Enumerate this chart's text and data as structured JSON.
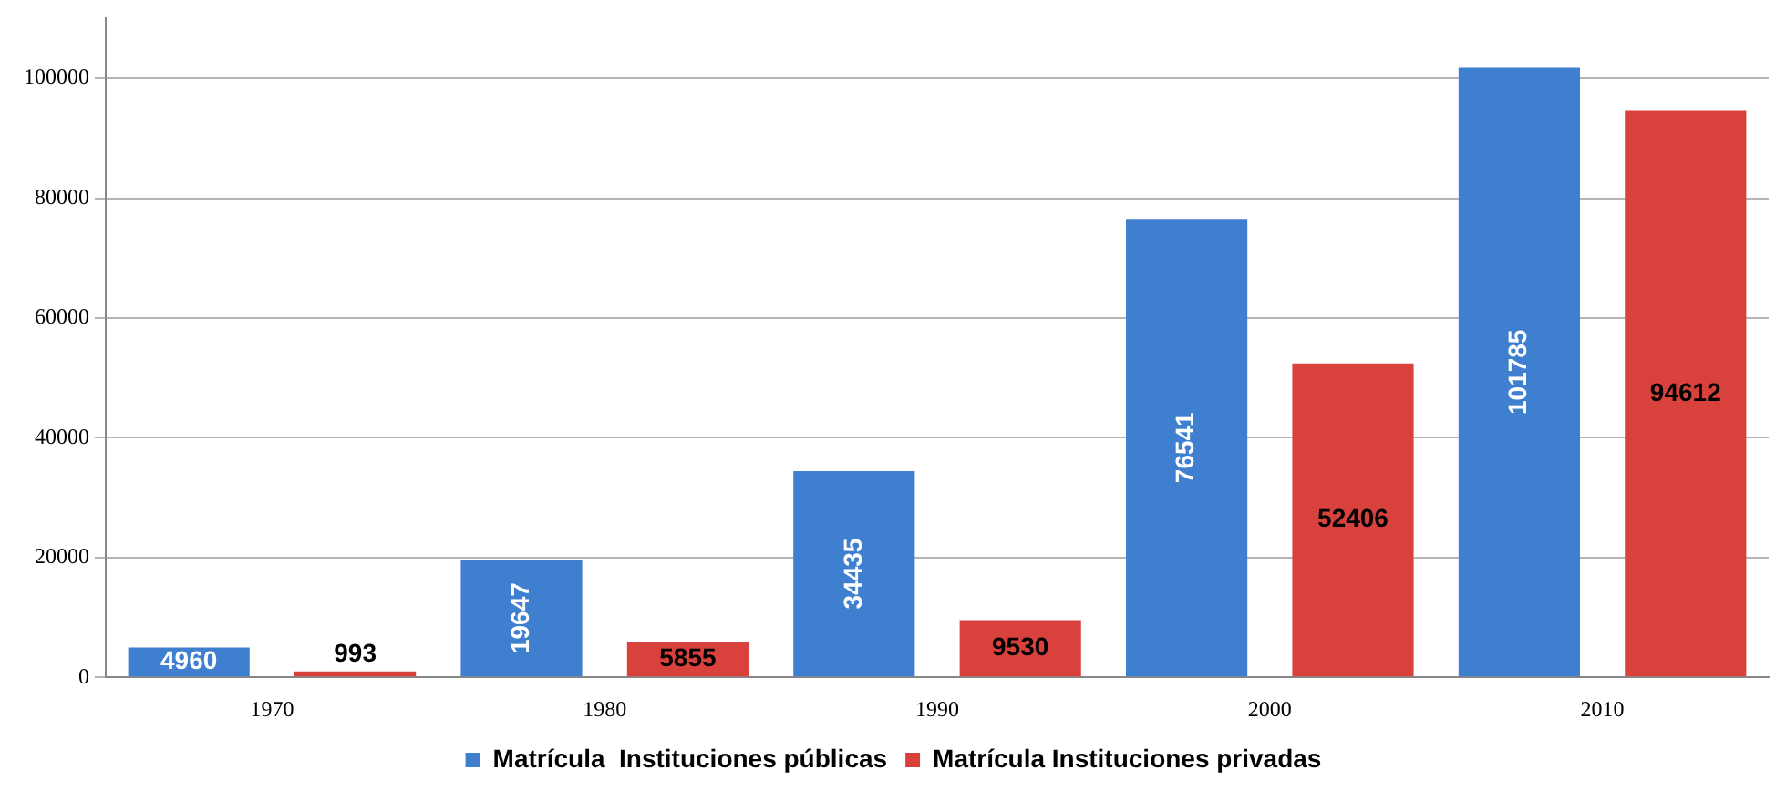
{
  "chart_data": {
    "type": "bar",
    "categories": [
      "1970",
      "1980",
      "1990",
      "2000",
      "2010"
    ],
    "series": [
      {
        "name": "Matrícula  Instituciones públicas",
        "color": "#3f7fd0",
        "values": [
          4960,
          19647,
          34435,
          76541,
          101785
        ]
      },
      {
        "name": "Matrícula Instituciones privadas",
        "color": "#d9413c",
        "values": [
          993,
          5855,
          9530,
          52406,
          94612
        ]
      }
    ],
    "ylim": [
      0,
      110000
    ],
    "yticks": [
      0,
      20000,
      40000,
      60000,
      80000,
      100000
    ],
    "grid": "y",
    "legend": "bottom",
    "data_labels": true
  }
}
